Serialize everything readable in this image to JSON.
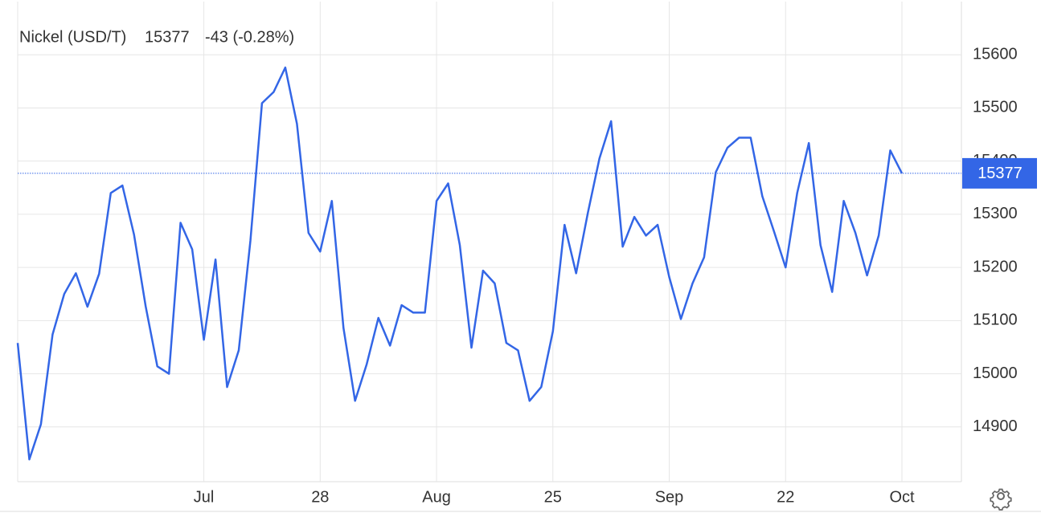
{
  "chart_data": {
    "type": "line",
    "series": [
      {
        "name": "Nickel (USD/T)",
        "color": "#3366e6",
        "values": [
          15058,
          14839,
          14905,
          15074,
          15150,
          15189,
          15126,
          15188,
          15340,
          15354,
          15262,
          15127,
          15014,
          15000,
          15284,
          15234,
          15064,
          15215,
          14975,
          15044,
          15250,
          15509,
          15530,
          15576,
          15470,
          15265,
          15230,
          15325,
          15086,
          14949,
          15018,
          15105,
          15053,
          15129,
          15115,
          15115,
          15325,
          15358,
          15242,
          15049,
          15194,
          15170,
          15058,
          15044,
          14949,
          14975,
          15080,
          15280,
          15189,
          15302,
          15405,
          15475,
          15239,
          15295,
          15260,
          15280,
          15182,
          15103,
          15170,
          15219,
          15379,
          15425,
          15444,
          15444,
          15334,
          15268,
          15200,
          15340,
          15434,
          15242,
          15154,
          15325,
          15265,
          15185,
          15260,
          15420,
          15377
        ]
      }
    ],
    "categories": [
      null,
      null,
      null,
      null,
      null,
      null,
      null,
      null,
      null,
      null,
      null,
      null,
      null,
      null,
      null,
      null,
      "Jul",
      null,
      null,
      null,
      null,
      null,
      null,
      null,
      null,
      null,
      "28",
      null,
      null,
      null,
      null,
      null,
      null,
      null,
      null,
      null,
      "Aug",
      null,
      null,
      null,
      null,
      null,
      null,
      null,
      null,
      null,
      "25",
      null,
      null,
      null,
      null,
      null,
      null,
      null,
      null,
      null,
      "Sep",
      null,
      null,
      null,
      null,
      null,
      null,
      null,
      null,
      null,
      "22",
      null,
      null,
      null,
      null,
      null,
      null,
      null,
      null,
      null,
      "Oct"
    ],
    "last_price": "15377",
    "change": "-43 (-0.28%)",
    "change_color": "#e04848",
    "ylim": [
      14797,
      15700
    ],
    "yticks": [
      14900,
      15000,
      15100,
      15200,
      15300,
      15400,
      15500,
      15600
    ],
    "grid": true
  }
}
